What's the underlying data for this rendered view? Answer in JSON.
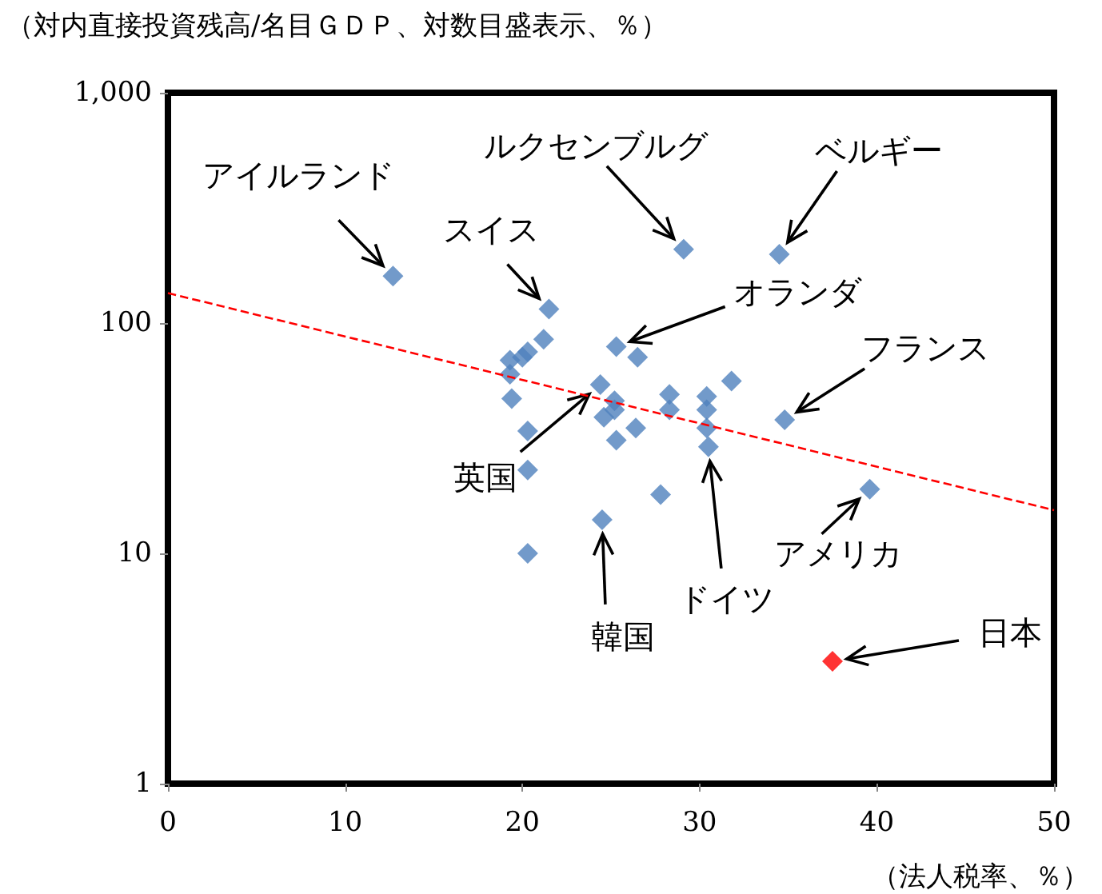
{
  "chart_data": {
    "type": "scatter",
    "xlabel": "（法人税率、％）",
    "ylabel": "（対内直接投資残高/名目ＧＤＰ、対数目盛表示、％）",
    "xlim": [
      0,
      50
    ],
    "xticks": [
      0,
      10,
      20,
      30,
      40,
      50
    ],
    "ylim": [
      1,
      1000
    ],
    "yticks": [
      1,
      10,
      100,
      {
        "value": 1000,
        "label": "1,000"
      }
    ],
    "log": "y",
    "grid": false,
    "marker": "diamond",
    "series": [
      {
        "color": "#4f81bd",
        "x": [
          12.7,
          29.1,
          34.5,
          21.5,
          21.2,
          20.3,
          20.0,
          19.3,
          19.3,
          19.4,
          20.3,
          20.3,
          25.3,
          26.5,
          24.4,
          25.2,
          25.2,
          24.6,
          25.3,
          26.4,
          28.3,
          28.3,
          27.8,
          30.4,
          30.4,
          30.4,
          30.5,
          31.8,
          34.8,
          39.6,
          24.5,
          20.3
        ],
        "values": [
          160,
          209,
          199,
          115,
          85,
          75,
          71,
          69,
          60,
          47,
          34,
          23,
          79,
          71,
          54,
          46,
          42,
          39,
          31,
          35,
          49,
          42,
          18,
          48,
          42,
          35,
          29,
          56,
          38,
          19,
          14,
          10
        ]
      },
      {
        "color": "#ff0000",
        "x": [
          37.5
        ],
        "values": [
          3.4
        ]
      },
      {
        "type": "line",
        "color": "#ff0000",
        "line_style": "dashed",
        "marker": "none",
        "x": [
          0,
          50
        ],
        "values": [
          135,
          15.4
        ]
      }
    ],
    "annotations": [
      {
        "text": "アイルランド",
        "x": 12.7,
        "y": 160
      },
      {
        "text": "ルクセンブルグ",
        "x": 29.1,
        "y": 209
      },
      {
        "text": "ベルギー",
        "x": 34.5,
        "y": 199
      },
      {
        "text": "スイス",
        "x": 21.5,
        "y": 115
      },
      {
        "text": "オランダ",
        "x": 25.3,
        "y": 79
      },
      {
        "text": "フランス",
        "x": 34.8,
        "y": 38
      },
      {
        "text": "英国",
        "x": 24.4,
        "y": 54
      },
      {
        "text": "ドイツ",
        "x": 30.5,
        "y": 29
      },
      {
        "text": "アメリカ",
        "x": 39.6,
        "y": 19
      },
      {
        "text": "韓国",
        "x": 24.5,
        "y": 14
      },
      {
        "text": "日本",
        "x": 37.5,
        "y": 3.4
      }
    ]
  }
}
